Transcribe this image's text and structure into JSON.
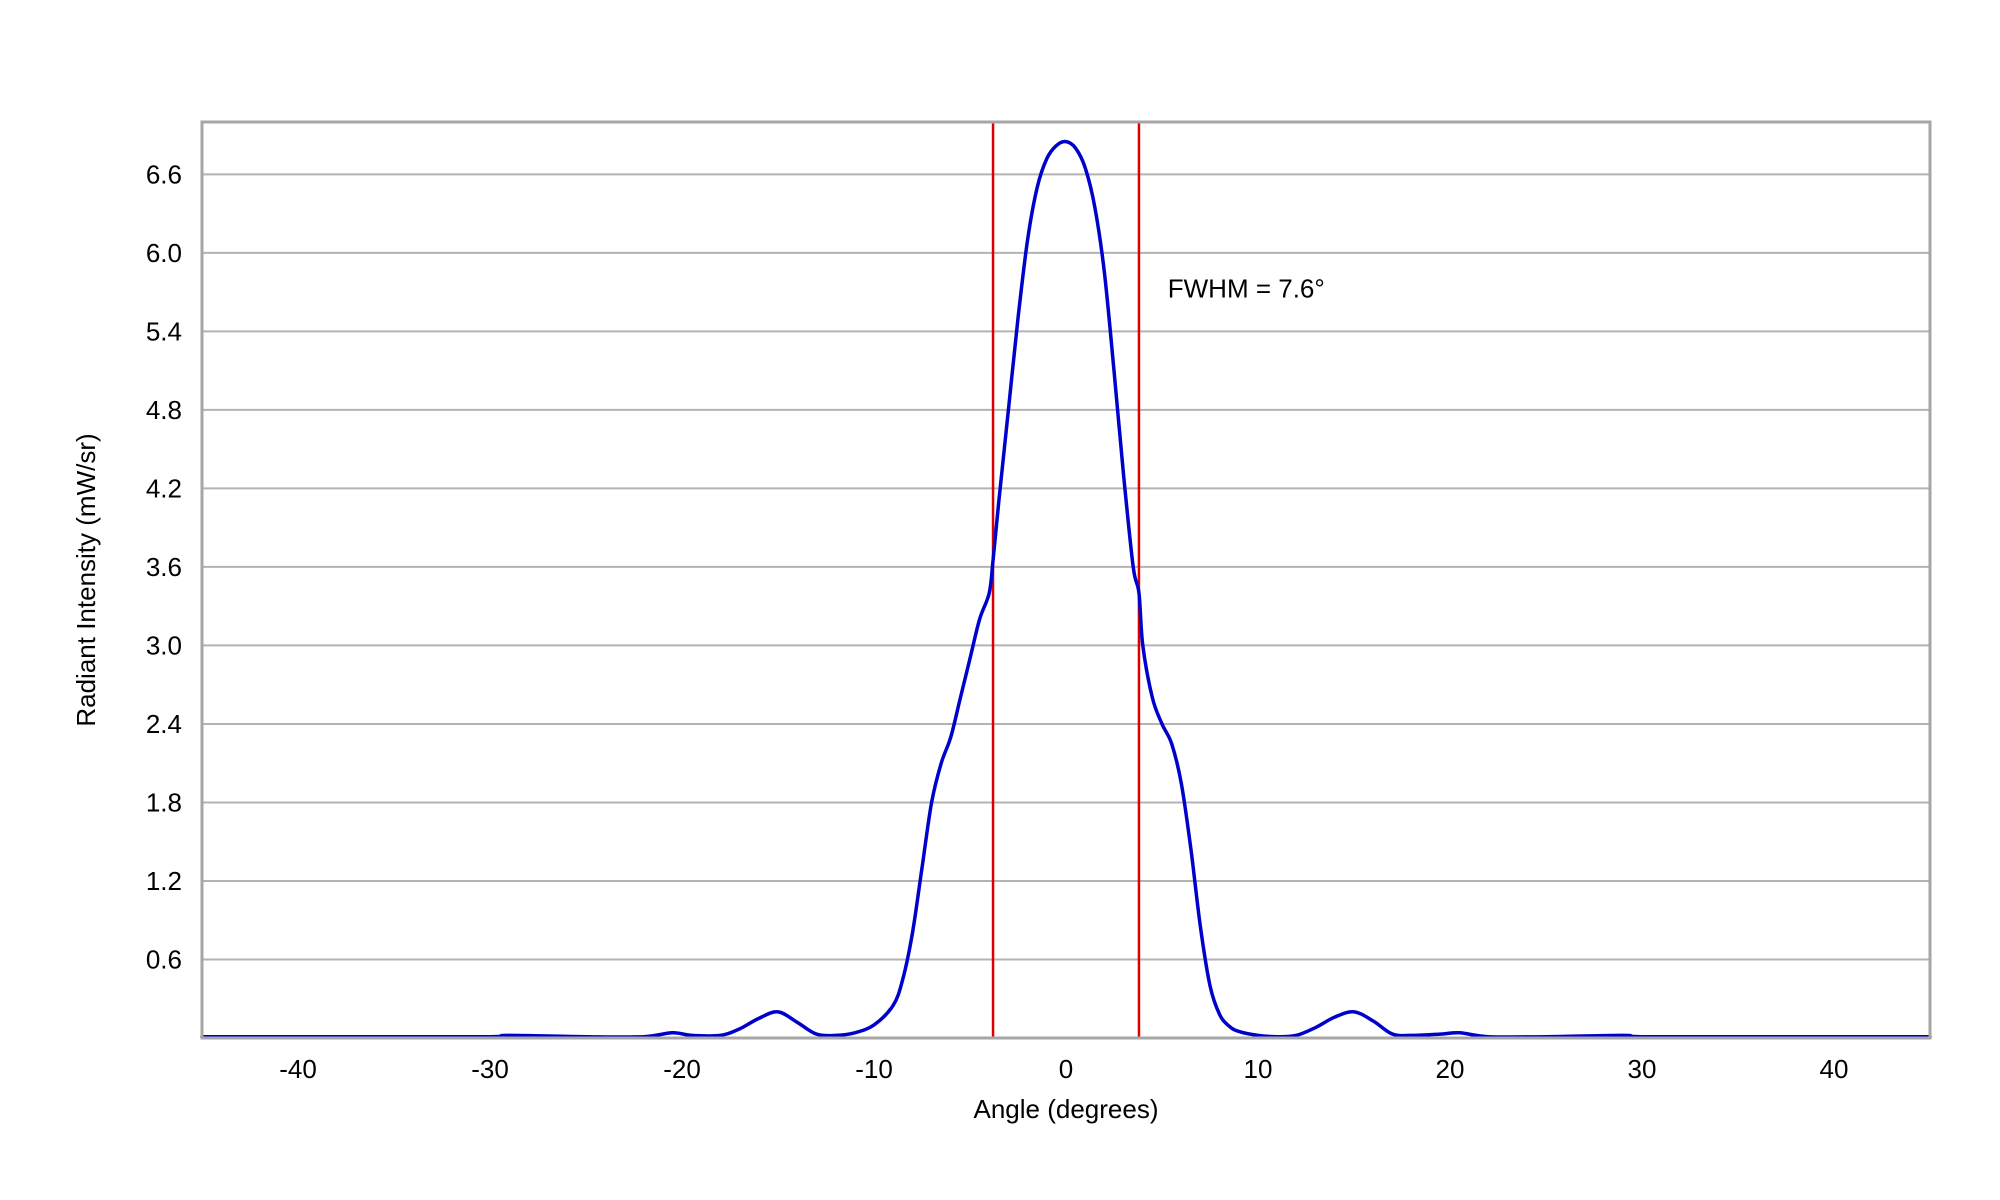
{
  "chart_data": {
    "type": "line",
    "title": "",
    "xlabel": "Angle (degrees)",
    "ylabel": "Radiant Intensity (mW/sr)",
    "xlim": [
      -45,
      45
    ],
    "ylim": [
      0,
      7.0
    ],
    "xticks": [
      -40,
      -30,
      -20,
      -10,
      0,
      10,
      20,
      30,
      40
    ],
    "yticks": [
      0.6,
      1.2,
      1.8,
      2.4,
      3.0,
      3.6,
      4.2,
      4.8,
      5.4,
      6.0,
      6.6
    ],
    "ytick_labels": [
      "0.6",
      "1.2",
      "1.8",
      "2.4",
      "3.0",
      "3.6",
      "4.2",
      "4.8",
      "5.4",
      "6.0",
      "6.6"
    ],
    "grid": "horizontal",
    "colors": {
      "series": "#0000cc",
      "markers": "#dd0000",
      "grid": "#b3b3b3",
      "frame": "#a6a6a6"
    },
    "series": [
      {
        "x": [
          -45,
          -40,
          -35,
          -30,
          -29,
          -25,
          -22,
          -20.5,
          -19.5,
          -18,
          -17,
          -16,
          -15,
          -14,
          -13,
          -12,
          -11,
          -10,
          -9,
          -8.5,
          -8,
          -7.5,
          -7,
          -6.5,
          -6,
          -5.5,
          -5,
          -4.5,
          -4,
          -3.8,
          -3.5,
          -3,
          -2.5,
          -2,
          -1.5,
          -1,
          -0.5,
          0,
          0.5,
          1,
          1.5,
          2,
          2.5,
          3,
          3.5,
          3.8,
          4,
          4.5,
          5,
          5.5,
          6,
          6.5,
          7,
          7.5,
          8,
          8.5,
          9,
          10,
          11,
          12,
          13,
          14,
          15,
          16,
          17,
          18,
          19.5,
          20.5,
          22,
          25,
          29,
          30,
          35,
          40,
          45
        ],
        "y": [
          0.01,
          0.01,
          0.01,
          0.01,
          0.02,
          0.01,
          0.01,
          0.04,
          0.02,
          0.02,
          0.07,
          0.15,
          0.2,
          0.12,
          0.03,
          0.02,
          0.04,
          0.1,
          0.25,
          0.45,
          0.8,
          1.3,
          1.8,
          2.1,
          2.3,
          2.6,
          2.9,
          3.2,
          3.4,
          3.65,
          4.1,
          4.8,
          5.5,
          6.1,
          6.5,
          6.72,
          6.82,
          6.85,
          6.8,
          6.65,
          6.35,
          5.85,
          5.1,
          4.3,
          3.6,
          3.4,
          3.0,
          2.6,
          2.4,
          2.25,
          1.95,
          1.45,
          0.85,
          0.4,
          0.18,
          0.09,
          0.05,
          0.02,
          0.01,
          0.02,
          0.08,
          0.16,
          0.2,
          0.13,
          0.03,
          0.02,
          0.03,
          0.04,
          0.01,
          0.01,
          0.02,
          0.01,
          0.01,
          0.01,
          0.01
        ]
      }
    ],
    "vlines": [
      -3.8,
      3.8
    ],
    "annotation": {
      "text": "FWHM = 7.6°",
      "x": 5.3,
      "y": 5.66
    }
  }
}
